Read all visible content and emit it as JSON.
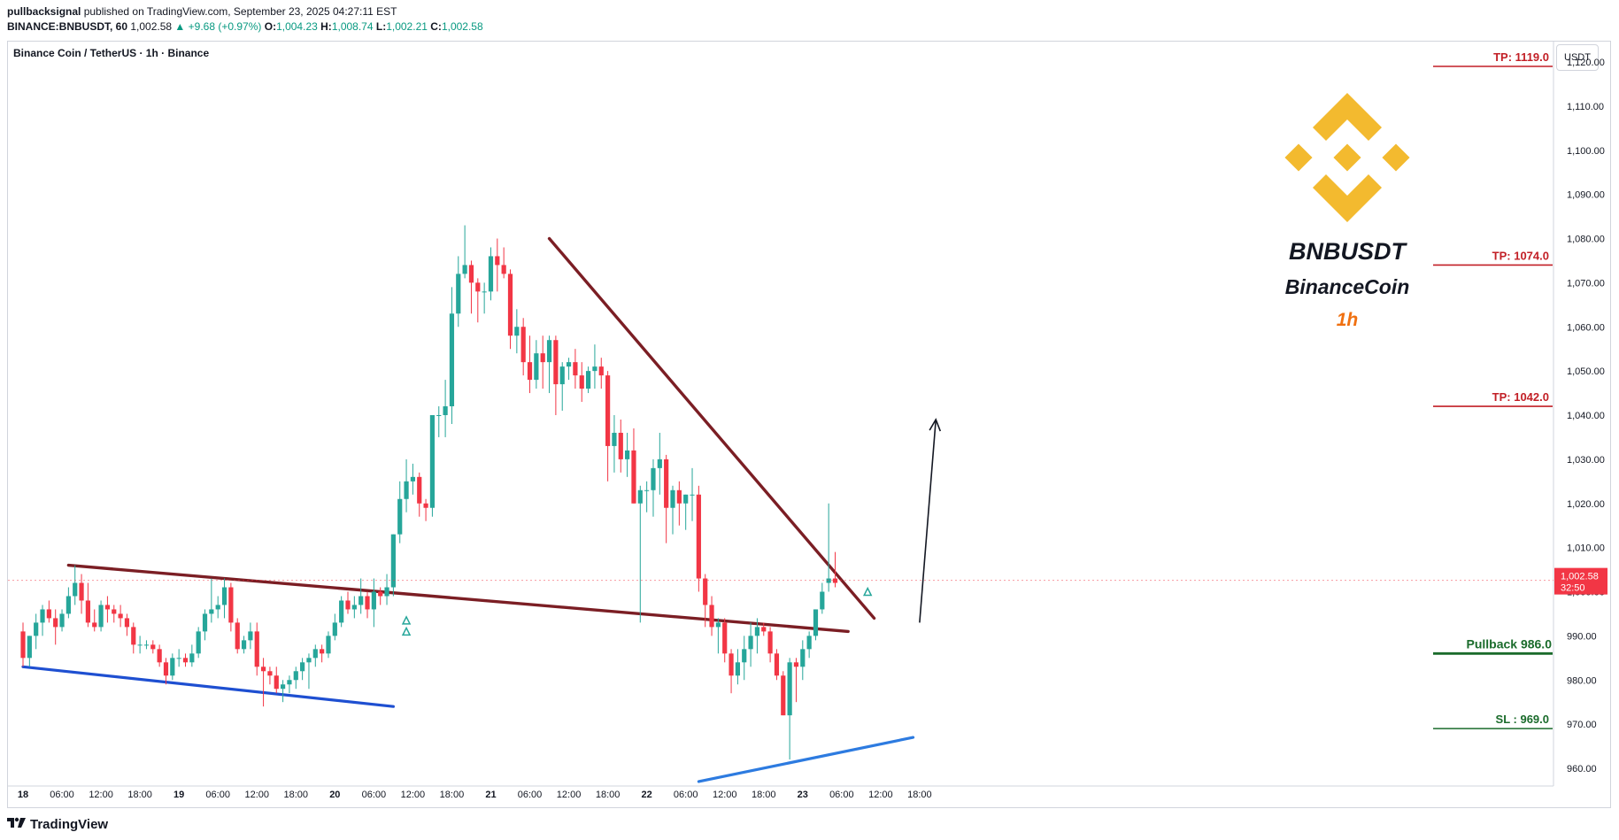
{
  "header": {
    "publisher": "pullbacksignal",
    "published_text": "published on TradingView.com, September 23, 2025 04:27:11 EST",
    "symbol": "BINANCE:BNBUSDT, 60",
    "last": "1,002.58",
    "change": "+9.68 (+0.97%)",
    "o_label": "O:",
    "o_val": "1,004.23",
    "h_label": "H:",
    "h_val": "1,008.74",
    "l_label": "L:",
    "l_val": "1,002.21",
    "c_label": "C:",
    "c_val": "1,002.58"
  },
  "chart_title": "Binance Coin / TetherUS · 1h · Binance",
  "currency_label": "USDT",
  "footer": {
    "brand": "TradingView"
  },
  "overlay": {
    "ticker": "BNBUSDT",
    "name": "BinanceCoin",
    "timeframe": "1h"
  },
  "colors": {
    "up": "#26a69a",
    "down": "#f23645",
    "resistance": "#7b1e24",
    "support": "#1e4fd1",
    "level_line": "#c21f26",
    "pullback": "#1a6b2b",
    "sl": "#1a6b2b",
    "logo": "#f3ba2f",
    "timeframe": "#f07010"
  },
  "chart_data": {
    "type": "candlestick",
    "title": "Binance Coin / TetherUS · 1h · Binance",
    "ylim": [
      955,
      1125
    ],
    "y_ticks": [
      960,
      970,
      980,
      990,
      1000,
      1010,
      1020,
      1030,
      1040,
      1050,
      1060,
      1070,
      1080,
      1090,
      1100,
      1110,
      1120
    ],
    "y_tick_labels": [
      "960.00",
      "970.00",
      "980.00",
      "990.00",
      "1,000.00",
      "1,010.00",
      "1,020.00",
      "1,030.00",
      "1,040.00",
      "1,050.00",
      "1,060.00",
      "1,070.00",
      "1,080.00",
      "1,090.00",
      "1,100.00",
      "1,110.00",
      "1,120.00"
    ],
    "x_ticks": [
      {
        "i": 0,
        "label": "18"
      },
      {
        "i": 6,
        "label": "06:00"
      },
      {
        "i": 12,
        "label": "12:00"
      },
      {
        "i": 18,
        "label": "18:00"
      },
      {
        "i": 24,
        "label": "19"
      },
      {
        "i": 30,
        "label": "06:00"
      },
      {
        "i": 36,
        "label": "12:00"
      },
      {
        "i": 42,
        "label": "18:00"
      },
      {
        "i": 48,
        "label": "20"
      },
      {
        "i": 54,
        "label": "06:00"
      },
      {
        "i": 60,
        "label": "12:00"
      },
      {
        "i": 66,
        "label": "18:00"
      },
      {
        "i": 72,
        "label": "21"
      },
      {
        "i": 78,
        "label": "06:00"
      },
      {
        "i": 84,
        "label": "12:00"
      },
      {
        "i": 90,
        "label": "18:00"
      },
      {
        "i": 96,
        "label": "22"
      },
      {
        "i": 102,
        "label": "06:00"
      },
      {
        "i": 108,
        "label": "12:00"
      },
      {
        "i": 114,
        "label": "18:00"
      },
      {
        "i": 120,
        "label": "23"
      },
      {
        "i": 126,
        "label": "06:00"
      },
      {
        "i": 132,
        "label": "12:00"
      },
      {
        "i": 138,
        "label": "18:00"
      }
    ],
    "candles": [
      [
        991,
        993,
        983,
        985
      ],
      [
        985,
        990,
        983,
        990
      ],
      [
        990,
        995,
        987,
        993
      ],
      [
        993,
        997,
        990,
        996
      ],
      [
        996,
        998,
        993,
        994
      ],
      [
        994,
        996,
        988,
        992
      ],
      [
        992,
        996,
        991,
        995
      ],
      [
        995,
        1001,
        994,
        999
      ],
      [
        999,
        1006,
        997,
        1002
      ],
      [
        1002,
        1004,
        995,
        998
      ],
      [
        998,
        1002,
        992,
        993
      ],
      [
        993,
        996,
        991,
        992
      ],
      [
        992,
        998,
        991,
        997
      ],
      [
        997,
        999,
        993,
        996
      ],
      [
        996,
        997,
        993,
        995
      ],
      [
        995,
        997,
        992,
        994
      ],
      [
        994,
        995,
        990,
        992
      ],
      [
        992,
        993,
        986,
        988
      ],
      [
        988,
        990,
        986,
        988
      ],
      [
        988,
        989,
        987,
        988
      ],
      [
        988,
        989,
        986,
        987
      ],
      [
        987,
        988,
        983,
        984
      ],
      [
        984,
        985,
        979,
        981
      ],
      [
        981,
        986,
        980,
        985
      ],
      [
        985,
        987,
        983,
        985
      ],
      [
        985,
        986,
        983,
        984
      ],
      [
        984,
        988,
        983,
        986
      ],
      [
        986,
        992,
        985,
        991
      ],
      [
        991,
        996,
        989,
        995
      ],
      [
        995,
        1003,
        993,
        996
      ],
      [
        996,
        999,
        994,
        997
      ],
      [
        997,
        1003,
        994,
        1001
      ],
      [
        1001,
        1002,
        991,
        993
      ],
      [
        993,
        994,
        986,
        987
      ],
      [
        987,
        990,
        986,
        989
      ],
      [
        989,
        993,
        987,
        991
      ],
      [
        991,
        993,
        981,
        983
      ],
      [
        983,
        985,
        974,
        982
      ],
      [
        982,
        983,
        979,
        981
      ],
      [
        981,
        983,
        977,
        978
      ],
      [
        978,
        980,
        975,
        979
      ],
      [
        979,
        981,
        977,
        980
      ],
      [
        980,
        983,
        978,
        982
      ],
      [
        982,
        985,
        980,
        984
      ],
      [
        984,
        986,
        978,
        985
      ],
      [
        985,
        988,
        983,
        987
      ],
      [
        987,
        988,
        984,
        986
      ],
      [
        986,
        991,
        985,
        990
      ],
      [
        990,
        995,
        989,
        993
      ],
      [
        993,
        999,
        992,
        998
      ],
      [
        998,
        1000,
        995,
        996
      ],
      [
        996,
        999,
        994,
        997
      ],
      [
        997,
        1003,
        995,
        999
      ],
      [
        999,
        1000,
        994,
        996
      ],
      [
        996,
        1003,
        992,
        1000
      ],
      [
        1000,
        1001,
        997,
        999
      ],
      [
        999,
        1004,
        997,
        1001
      ],
      [
        1001,
        1013,
        999,
        1013
      ],
      [
        1013,
        1025,
        1011,
        1021
      ],
      [
        1021,
        1030,
        1018,
        1025
      ],
      [
        1025,
        1029,
        1022,
        1026
      ],
      [
        1026,
        1027,
        1017,
        1020
      ],
      [
        1020,
        1021,
        1016,
        1019
      ],
      [
        1019,
        1040,
        1017,
        1040
      ],
      [
        1040,
        1042,
        1035,
        1040
      ],
      [
        1040,
        1048,
        1035,
        1042
      ],
      [
        1042,
        1069,
        1038,
        1063
      ],
      [
        1063,
        1076,
        1060,
        1072
      ],
      [
        1072,
        1083,
        1071,
        1074
      ],
      [
        1074,
        1075,
        1063,
        1070
      ],
      [
        1070,
        1071,
        1061,
        1068
      ],
      [
        1068,
        1070,
        1063,
        1068
      ],
      [
        1068,
        1078,
        1066,
        1076
      ],
      [
        1076,
        1080,
        1068,
        1074
      ],
      [
        1074,
        1078,
        1071,
        1072
      ],
      [
        1072,
        1073,
        1055,
        1058
      ],
      [
        1058,
        1064,
        1054,
        1060
      ],
      [
        1060,
        1062,
        1049,
        1052
      ],
      [
        1052,
        1058,
        1045,
        1048
      ],
      [
        1048,
        1057,
        1046,
        1054
      ],
      [
        1054,
        1058,
        1046,
        1052
      ],
      [
        1052,
        1058,
        1045,
        1057
      ],
      [
        1057,
        1058,
        1040,
        1047
      ],
      [
        1047,
        1052,
        1041,
        1051
      ],
      [
        1051,
        1053,
        1048,
        1052
      ],
      [
        1052,
        1055,
        1046,
        1049
      ],
      [
        1049,
        1052,
        1043,
        1046
      ],
      [
        1046,
        1051,
        1045,
        1050
      ],
      [
        1050,
        1056,
        1046,
        1051
      ],
      [
        1051,
        1053,
        1046,
        1049
      ],
      [
        1049,
        1050,
        1025,
        1033
      ],
      [
        1033,
        1040,
        1027,
        1036
      ],
      [
        1036,
        1039,
        1027,
        1030
      ],
      [
        1030,
        1036,
        1026,
        1032
      ],
      [
        1032,
        1037,
        1020,
        1020
      ],
      [
        1020,
        1024,
        993,
        1023
      ],
      [
        1023,
        1025,
        1018,
        1023
      ],
      [
        1023,
        1030,
        1017,
        1028
      ],
      [
        1028,
        1036,
        1022,
        1030
      ],
      [
        1030,
        1031,
        1011,
        1019
      ],
      [
        1019,
        1024,
        1013,
        1023
      ],
      [
        1023,
        1025,
        1015,
        1020
      ],
      [
        1020,
        1022,
        1014,
        1022
      ],
      [
        1022,
        1028,
        1016,
        1022
      ],
      [
        1022,
        1024,
        1000,
        1003
      ],
      [
        1003,
        1004,
        992,
        997
      ],
      [
        997,
        999,
        990,
        992
      ],
      [
        992,
        994,
        986,
        993
      ],
      [
        993,
        994,
        984,
        986
      ],
      [
        986,
        987,
        977,
        981
      ],
      [
        981,
        987,
        979,
        984
      ],
      [
        984,
        990,
        980,
        987
      ],
      [
        987,
        993,
        983,
        990
      ],
      [
        990,
        994,
        986,
        992
      ],
      [
        992,
        993,
        990,
        991
      ],
      [
        991,
        992,
        984,
        986
      ],
      [
        986,
        987,
        980,
        981
      ],
      [
        981,
        982,
        972,
        972
      ],
      [
        972,
        985,
        962,
        984
      ],
      [
        984,
        985,
        975,
        983
      ],
      [
        983,
        989,
        980,
        987
      ],
      [
        987,
        991,
        985,
        990
      ],
      [
        990,
        996,
        989,
        996
      ],
      [
        996,
        1002,
        995,
        1000
      ],
      [
        1002,
        1020,
        1000,
        1003
      ],
      [
        1003,
        1009,
        1001,
        1002
      ]
    ],
    "trendlines": [
      {
        "name": "upper-resistance",
        "role": "flag-top",
        "from": [
          7,
          1006
        ],
        "to": [
          127,
          991
        ]
      },
      {
        "name": "lower-support",
        "role": "flag-bottom",
        "from": [
          0,
          983
        ],
        "to": [
          57,
          974
        ]
      },
      {
        "name": "descending-resistance",
        "role": "downtrend",
        "from": [
          81,
          1080
        ],
        "to": [
          131,
          994
        ]
      },
      {
        "name": "rising-support",
        "role": "uptrend",
        "from": [
          104,
          957
        ],
        "to": [
          137,
          967
        ]
      }
    ],
    "levels": [
      {
        "name": "tp-1119",
        "label": "TP: 1119.0",
        "value": 1119.0
      },
      {
        "name": "tp-1074",
        "label": "TP: 1074.0",
        "value": 1074.0
      },
      {
        "name": "tp-1042",
        "label": "TP: 1042.0",
        "value": 1042.0
      },
      {
        "name": "pullback-986",
        "label": "Pullback 986.0",
        "value": 986.0
      },
      {
        "name": "sl-969",
        "label": "SL : 969.0",
        "value": 969.0
      }
    ],
    "projection_arrow": {
      "from": [
        132,
        993
      ],
      "to": [
        134.5,
        1039
      ]
    },
    "signal_markers": [
      {
        "i": 59,
        "value": 991
      },
      {
        "i": 59,
        "value": 993.5
      },
      {
        "i": 130,
        "value": 1000
      }
    ],
    "last_price": {
      "value": 1002.58,
      "label": "1,002.58",
      "countdown": "32:50"
    }
  }
}
